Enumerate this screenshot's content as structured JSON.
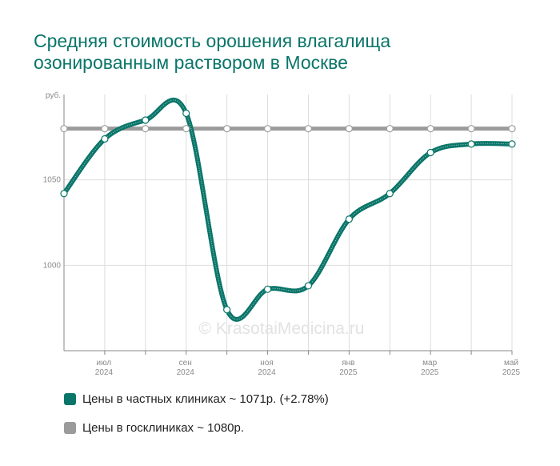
{
  "title": "Средняя стоимость орошения влагалища озонированным раствором в Москве",
  "watermark": "© KrasotaiMedicina.ru",
  "colors": {
    "private": "#0a7569",
    "public": "#9b9b9b",
    "grid": "#dddddd",
    "axis": "#888888"
  },
  "legend": {
    "private_label": "Цены в частных клиниках ~ 1071р. (+2.78%)",
    "public_label": "Цены в госклиниках ~ 1080р."
  },
  "chart_data": {
    "type": "line",
    "ylabel": "руб.",
    "ylim": [
      950,
      1100
    ],
    "y_ticks": [
      1000,
      1050
    ],
    "x_ticks": [
      {
        "month": "июл",
        "year": "2024"
      },
      {
        "month": "сен",
        "year": "2024"
      },
      {
        "month": "ноя",
        "year": "2024"
      },
      {
        "month": "янв",
        "year": "2025"
      },
      {
        "month": "мар",
        "year": "2025"
      },
      {
        "month": "май",
        "year": "2025"
      }
    ],
    "x": [
      "2024-06",
      "2024-07",
      "2024-08",
      "2024-09",
      "2024-10",
      "2024-11",
      "2024-12",
      "2025-01",
      "2025-02",
      "2025-03",
      "2025-04",
      "2025-05"
    ],
    "series": [
      {
        "name": "Цены в частных клиниках",
        "values": [
          1042,
          1074,
          1085,
          1089,
          974,
          986,
          988,
          1027,
          1042,
          1066,
          1071,
          1071
        ]
      },
      {
        "name": "Цены в госклиниках",
        "values": [
          1080,
          1080,
          1080,
          1080,
          1080,
          1080,
          1080,
          1080,
          1080,
          1080,
          1080,
          1080
        ]
      }
    ],
    "grid": true,
    "legend_position": "bottom-left"
  }
}
